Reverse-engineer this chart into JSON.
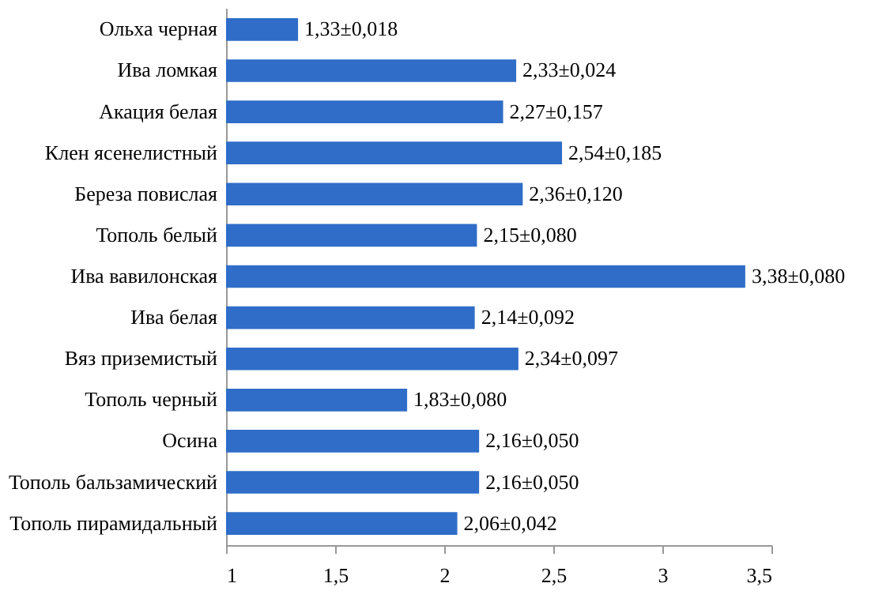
{
  "chart_data": {
    "type": "bar",
    "orientation": "horizontal",
    "categories": [
      "Ольха черная",
      "Ива ломкая",
      "Акация белая",
      "Клен ясенелистный",
      "Береза повислая",
      "Тополь белый",
      "Ива вавилонская",
      "Ива белая",
      "Вяз приземистый",
      "Тополь черный",
      "Осина",
      "Тополь бальзамический",
      "Тополь пирамидальный"
    ],
    "values": [
      1.33,
      2.33,
      2.27,
      2.54,
      2.36,
      2.15,
      3.38,
      2.14,
      2.34,
      1.83,
      2.16,
      2.16,
      2.06
    ],
    "value_labels": [
      "1,33±0,018",
      "2,33±0,024",
      "2,27±0,157",
      "2,54±0,185",
      "2,36±0,120",
      "2,15±0,080",
      "3,38±0,080",
      "2,14±0,092",
      "2,34±0,097",
      "1,83±0,080",
      "2,16±0,050",
      "2,16±0,050",
      "2,06±0,042"
    ],
    "color": "#2f6dc8",
    "xlim": [
      1,
      3.5
    ],
    "xticks": [
      1,
      {
        "value": 1.5,
        "label": "1,5"
      },
      2,
      {
        "value": 2.5,
        "label": "2,5"
      },
      3,
      {
        "value": 3.5,
        "label": "3,5"
      }
    ],
    "grid": false
  }
}
